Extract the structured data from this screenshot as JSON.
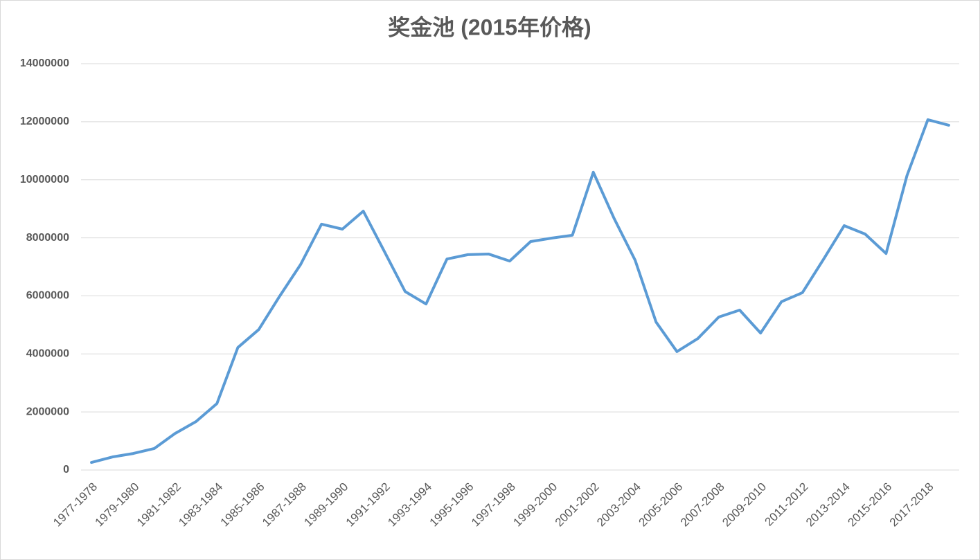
{
  "chart_data": {
    "type": "line",
    "title": "奖金池 (2015年价格)",
    "categories": [
      "1977-1978",
      null,
      "1979-1980",
      null,
      "1981-1982",
      null,
      "1983-1984",
      null,
      "1985-1986",
      null,
      "1987-1988",
      null,
      "1989-1990",
      null,
      "1991-1992",
      null,
      "1993-1994",
      null,
      "1995-1996",
      null,
      "1997-1998",
      null,
      "1999-2000",
      null,
      "2001-2002",
      null,
      "2003-2004",
      null,
      "2005-2006",
      null,
      "2007-2008",
      null,
      "2009-2010",
      null,
      "2011-2012",
      null,
      "2013-2014",
      null,
      "2015-2016",
      null,
      "2017-2018",
      null
    ],
    "series": [
      {
        "color": "#5b9bd5",
        "values": [
          260000,
          450000,
          570000,
          740000,
          1260000,
          1670000,
          2290000,
          4220000,
          4840000,
          5990000,
          7080000,
          8470000,
          8300000,
          8920000,
          7540000,
          6150000,
          5720000,
          7270000,
          7420000,
          7440000,
          7200000,
          7870000,
          7990000,
          8090000,
          10260000,
          8660000,
          7230000,
          5100000,
          4080000,
          4530000,
          5270000,
          5510000,
          4720000,
          5800000,
          6110000,
          7250000,
          8420000,
          8130000,
          7460000,
          10140000,
          12070000,
          11880000
        ]
      }
    ],
    "ylim": [
      0,
      14000000
    ],
    "yticks": [
      0,
      2000000,
      4000000,
      6000000,
      8000000,
      10000000,
      12000000,
      14000000
    ],
    "grid": true
  }
}
